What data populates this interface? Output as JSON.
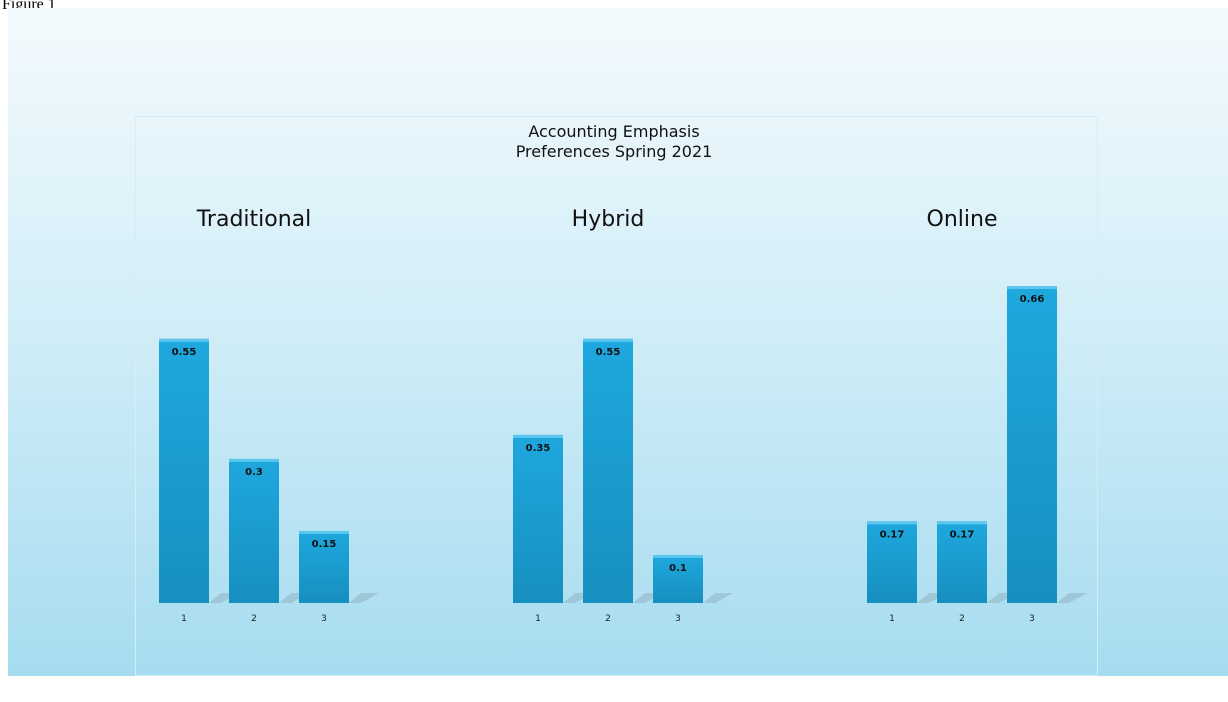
{
  "figure_label": "Figure 1",
  "chart_data": {
    "type": "bar",
    "title": "Accounting Emphasis Preferences Spring 2021",
    "title_lines": [
      "Accounting Emphasis",
      "Preferences Spring 2021"
    ],
    "bar_color": "#1ca2d6",
    "background_gradient": [
      "#f4fafd",
      "#a6dcf0"
    ],
    "grid": false,
    "legend": "none",
    "panels": [
      {
        "title": "Traditional",
        "categories": [
          "1",
          "2",
          "3"
        ],
        "values": [
          0.55,
          0.3,
          0.15
        ]
      },
      {
        "title": "Hybrid",
        "categories": [
          "1",
          "2",
          "3"
        ],
        "values": [
          0.35,
          0.55,
          0.1
        ]
      },
      {
        "title": "Online",
        "categories": [
          "1",
          "2",
          "3"
        ],
        "values": [
          0.17,
          0.17,
          0.66
        ]
      }
    ],
    "ylim": [
      0,
      0.66
    ]
  }
}
